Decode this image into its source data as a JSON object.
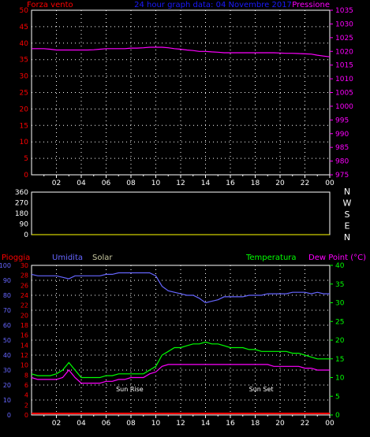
{
  "header": {
    "left_label": "Forza vento",
    "title": "24 hour graph data: 04 Novembre 2017",
    "right_label": "Pressione"
  },
  "colors": {
    "wind_axis": "#ff0000",
    "pressure": "#ff00ff",
    "title": "#1a1aff",
    "gust": "#ff0000",
    "wind_avg": "#ffff00",
    "wind_fill": "#ccffcc",
    "direction": "#ffff00",
    "rain": "#ff0000",
    "humidity": "#6666ff",
    "solar": "#ffff00",
    "temperature": "#00ff00",
    "dewpoint": "#ff00ff",
    "axis": "#ffffff"
  },
  "chart_data": [
    {
      "type": "line",
      "panel": "wind_pressure",
      "x_ticks": [
        "02",
        "04",
        "06",
        "08",
        "10",
        "12",
        "14",
        "16",
        "18",
        "20",
        "22",
        "00"
      ],
      "y_left_ticks": [
        "0",
        "5",
        "10",
        "15",
        "20",
        "25",
        "30",
        "35",
        "40",
        "45",
        "50"
      ],
      "y_left_label": "Forza vento",
      "ylim_left": [
        0,
        50
      ],
      "y_right_ticks": [
        "975",
        "980",
        "985",
        "990",
        "995",
        "1000",
        "1005",
        "1010",
        "1015",
        "1020",
        "1025",
        "1030",
        "1035"
      ],
      "y_right_label": "Pressione",
      "ylim_right": [
        975,
        1035
      ],
      "x_hours": [
        0,
        0.5,
        1,
        1.5,
        2,
        2.5,
        3,
        3.5,
        4,
        4.5,
        5,
        5.5,
        6,
        6.5,
        7,
        7.5,
        8,
        8.5,
        9,
        9.5,
        10,
        10.5,
        11,
        11.5,
        12,
        12.5,
        13,
        13.5,
        14,
        14.5,
        15,
        15.5,
        16,
        16.5,
        17,
        17.5,
        18,
        18.5,
        19,
        19.5,
        20,
        20.5,
        21,
        21.5,
        22,
        22.5,
        23,
        23.5,
        24
      ],
      "series": [
        {
          "name": "Pressione",
          "values": [
            1021,
            1021,
            1021,
            1020.8,
            1020.5,
            1020.5,
            1020.5,
            1020.5,
            1020.5,
            1020.5,
            1020.6,
            1020.8,
            1021,
            1021,
            1021,
            1021,
            1021.2,
            1021.2,
            1021.3,
            1021.5,
            1021.5,
            1021.5,
            1021.3,
            1021,
            1020.8,
            1020.5,
            1020.3,
            1020,
            1020,
            1019.8,
            1019.7,
            1019.5,
            1019.5,
            1019.5,
            1019.5,
            1019.5,
            1019.5,
            1019.5,
            1019.5,
            1019.5,
            1019.4,
            1019.3,
            1019.3,
            1019.2,
            1019.1,
            1019,
            1018.6,
            1018.3,
            1018
          ]
        },
        {
          "name": "gust",
          "values": [
            0,
            0,
            0,
            0,
            0,
            0,
            0,
            0,
            0,
            0,
            0,
            0,
            0,
            0,
            0,
            0,
            0,
            0,
            0,
            0,
            0,
            0,
            0,
            0,
            0,
            0,
            0,
            0,
            0,
            0,
            0,
            0,
            0,
            0,
            0,
            0,
            0,
            0,
            0,
            0,
            0,
            0,
            0,
            0,
            0,
            0,
            0,
            0,
            0
          ]
        },
        {
          "name": "wind",
          "values": [
            0,
            0,
            0,
            0,
            0,
            0,
            0,
            0,
            0,
            0,
            0,
            0,
            0,
            0,
            0,
            0,
            0,
            0,
            0,
            0,
            0,
            0,
            0,
            0,
            0,
            0,
            0,
            0,
            0,
            0,
            0,
            0,
            0,
            0,
            0,
            0,
            0,
            0,
            0,
            0,
            0,
            0,
            0,
            0,
            0,
            0,
            0,
            0,
            0
          ]
        }
      ]
    },
    {
      "type": "line",
      "panel": "direction",
      "y_ticks": [
        "0",
        "90",
        "180",
        "270",
        "360"
      ],
      "ylim": [
        0,
        360
      ],
      "compass": [
        "N",
        "W",
        "S",
        "E",
        "N"
      ],
      "x_hours": [
        0,
        0.5,
        1,
        1.5,
        2,
        2.5,
        3,
        3.5,
        4,
        4.5,
        5,
        5.5,
        6,
        6.5,
        7,
        7.5,
        8,
        8.5,
        9,
        9.5,
        10,
        10.5,
        11,
        11.5,
        12,
        12.5,
        13,
        13.5,
        14,
        14.5,
        15,
        15.5,
        16,
        16.5,
        17,
        17.5,
        18,
        18.5,
        19,
        19.5,
        20,
        20.5,
        21,
        21.5,
        22,
        22.5,
        23,
        23.5,
        24
      ],
      "series": [
        {
          "name": "direction",
          "values": [
            0,
            0,
            0,
            0,
            0,
            0,
            0,
            0,
            0,
            0,
            0,
            0,
            0,
            0,
            0,
            0,
            0,
            0,
            0,
            0,
            0,
            0,
            0,
            0,
            0,
            0,
            0,
            0,
            0,
            0,
            0,
            0,
            0,
            0,
            0,
            0,
            0,
            0,
            0,
            0,
            0,
            0,
            0,
            0,
            0,
            0,
            0,
            0,
            0
          ]
        }
      ]
    },
    {
      "type": "line",
      "panel": "weather",
      "labels": {
        "rain": "Pioggia",
        "humidity": "Umidita",
        "solar": "Solar",
        "temperature": "Temperatura",
        "dewpoint": "Dew Point (°C)"
      },
      "x_ticks": [
        "02",
        "04",
        "06",
        "08",
        "10",
        "12",
        "14",
        "16",
        "18",
        "20",
        "22",
        "00"
      ],
      "y_blue_ticks": [
        "0",
        "10",
        "20",
        "30",
        "40",
        "50",
        "60",
        "70",
        "80",
        "90",
        "100"
      ],
      "y_red_ticks": [
        "0",
        "2",
        "4",
        "6",
        "8",
        "10",
        "12",
        "14",
        "16",
        "18",
        "20",
        "22",
        "24",
        "26",
        "28",
        "30"
      ],
      "y_green_ticks": [
        "0",
        "5",
        "10",
        "15",
        "20",
        "25",
        "30",
        "35",
        "40"
      ],
      "ylim_humidity": [
        0,
        100
      ],
      "ylim_rain": [
        0,
        30
      ],
      "ylim_temp": [
        0,
        40
      ],
      "annotations": [
        "Sun Rise",
        "Sun Set"
      ],
      "x_hours": [
        0,
        0.5,
        1,
        1.5,
        2,
        2.5,
        3,
        3.5,
        4,
        4.5,
        5,
        5.5,
        6,
        6.5,
        7,
        7.5,
        8,
        8.5,
        9,
        9.5,
        10,
        10.5,
        11,
        11.5,
        12,
        12.5,
        13,
        13.5,
        14,
        14.5,
        15,
        15.5,
        16,
        16.5,
        17,
        17.5,
        18,
        18.5,
        19,
        19.5,
        20,
        20.5,
        21,
        21.5,
        22,
        22.5,
        23,
        23.5,
        24
      ],
      "series": [
        {
          "name": "Umidita",
          "values": [
            94,
            93,
            93,
            93,
            93,
            92,
            91,
            93,
            93,
            93,
            93,
            93,
            94,
            94,
            95,
            95,
            95,
            95,
            95,
            95,
            93,
            86,
            83,
            82,
            81,
            80,
            80,
            78,
            75,
            76,
            77,
            79,
            79,
            79,
            79,
            80,
            80,
            80,
            81,
            81,
            81,
            81,
            82,
            82,
            82,
            81,
            82,
            81,
            81
          ]
        },
        {
          "name": "Temperatura",
          "values": [
            11,
            10.5,
            10.5,
            10.5,
            11,
            12,
            14,
            12,
            10,
            10,
            10,
            10,
            10.5,
            10.5,
            11,
            11,
            11,
            11,
            11,
            12,
            13,
            16,
            17,
            18,
            18,
            18.5,
            19,
            19,
            19.5,
            19,
            19,
            18.5,
            18,
            18,
            18,
            17.5,
            17.5,
            17,
            17,
            17,
            17,
            17,
            16.5,
            16.5,
            16,
            15.5,
            15,
            15,
            15
          ]
        },
        {
          "name": "Dew Point",
          "values": [
            10,
            9.5,
            9.5,
            9.5,
            9.5,
            10,
            12,
            10,
            8.5,
            8.5,
            8.5,
            8.5,
            9,
            9,
            9.5,
            9.5,
            10,
            10,
            10,
            11,
            11.5,
            13,
            13.5,
            13.5,
            13.5,
            13.5,
            13.5,
            13.5,
            13.5,
            13.5,
            13.5,
            13.5,
            13.5,
            13.5,
            13.5,
            13.5,
            13.5,
            13.5,
            13.5,
            13,
            13,
            13,
            13,
            13,
            12.5,
            12.5,
            12,
            12,
            12
          ]
        },
        {
          "name": "Solar",
          "values": [
            0,
            0,
            0,
            0,
            0,
            0,
            0,
            0,
            0,
            0,
            0,
            0,
            0,
            0,
            0,
            0,
            0,
            0,
            0,
            0,
            0,
            0,
            0,
            0,
            0,
            0,
            0,
            0,
            0,
            0,
            0,
            0,
            0,
            0,
            0,
            0,
            0,
            0,
            0,
            0,
            0,
            0,
            0,
            0,
            0,
            0,
            0,
            0,
            0
          ]
        },
        {
          "name": "Pioggia",
          "values": [
            0.3,
            0.3,
            0.3,
            0.3,
            0.3,
            0.3,
            0.3,
            0.3,
            0.3,
            0.3,
            0.3,
            0.3,
            0.3,
            0.3,
            0.3,
            0.3,
            0.3,
            0.3,
            0.3,
            0.3,
            0.3,
            0.3,
            0.3,
            0.3,
            0.3,
            0.3,
            0.3,
            0.3,
            0.3,
            0.3,
            0.3,
            0.3,
            0.3,
            0.3,
            0.3,
            0.3,
            0.3,
            0.3,
            0.3,
            0.3,
            0.3,
            0.3,
            0.3,
            0.3,
            0.3,
            0.3,
            0.3,
            0.3,
            0.3
          ]
        }
      ]
    }
  ]
}
